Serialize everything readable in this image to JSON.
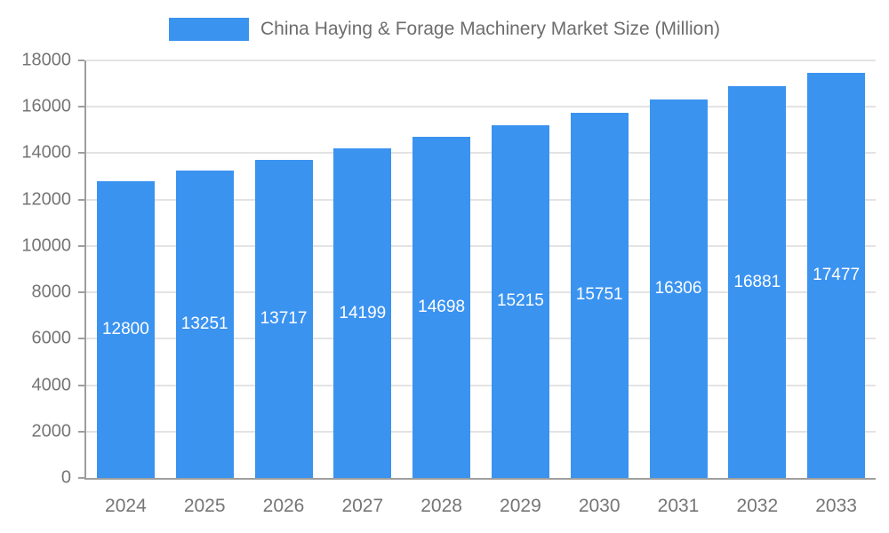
{
  "background_color": "#ffffff",
  "chart_data": {
    "type": "bar",
    "title": "China Haying & Forage Machinery Market Size (Million)",
    "categories": [
      "2024",
      "2025",
      "2026",
      "2027",
      "2028",
      "2029",
      "2030",
      "2031",
      "2032",
      "2033"
    ],
    "values": [
      12800,
      13251,
      13717,
      14199,
      14698,
      15215,
      15751,
      16306,
      16881,
      17477
    ],
    "xlabel": "",
    "ylabel": "",
    "ylim": [
      0,
      18000
    ],
    "ytick_step": 2000,
    "grid": true,
    "legend_position": "top",
    "bar_color": "#3b93f0",
    "value_label_color": "#ffffff",
    "axis_text_color": "#757575",
    "gridline_color": "#e3e3e3",
    "axis_line_color": "#9e9e9e"
  }
}
